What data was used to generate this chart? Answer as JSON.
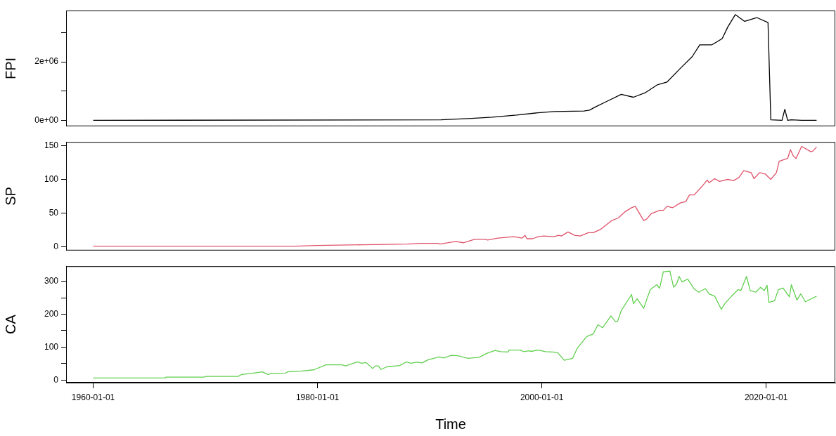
{
  "chart_data": [
    {
      "type": "line",
      "ylabel": "FPI",
      "xlim": [
        "1957-08",
        "2026-03"
      ],
      "ylim": [
        -200000,
        3750000
      ],
      "yticks": [
        {
          "value": 0,
          "label": "0e+00"
        },
        {
          "value": 1000000,
          "label": null
        },
        {
          "value": 2000000,
          "label": "2e+06"
        },
        {
          "value": 3000000,
          "label": null
        }
      ],
      "tick_labels": "y",
      "grid": false,
      "legend": false,
      "series": [
        {
          "color": "#000000",
          "x": [
            "1960-01",
            "1991-01",
            "1993-10",
            "1995-08",
            "1997-10",
            "1999-09",
            "2001-02",
            "2003-10",
            "2004-04",
            "2004-11",
            "2005-10",
            "2007-02",
            "2008-03",
            "2009-04",
            "2010-05",
            "2011-03",
            "2012-05",
            "2013-06",
            "2014-02",
            "2015-03",
            "2016-02",
            "2016-08",
            "2017-04",
            "2018-02",
            "2019-03",
            "2020-03",
            "2020-06",
            "2021-06",
            "2021-09",
            "2021-12",
            "2022-04",
            "2023-03",
            "2024-07"
          ],
          "values": [
            0,
            20000,
            70000,
            110000,
            180000,
            260000,
            300000,
            320000,
            350000,
            470000,
            640000,
            890000,
            790000,
            950000,
            1220000,
            1310000,
            1770000,
            2180000,
            2580000,
            2580000,
            2790000,
            3190000,
            3610000,
            3380000,
            3510000,
            3340000,
            20000,
            0,
            380000,
            0,
            20000,
            0,
            0
          ]
        }
      ]
    },
    {
      "type": "line",
      "ylabel": "SP",
      "xlim": [
        "1957-08",
        "2026-03"
      ],
      "ylim": [
        -5.5,
        155.5
      ],
      "yticks": [
        0,
        50,
        100,
        150
      ],
      "tick_labels": "y",
      "grid": false,
      "legend": false,
      "series": [
        {
          "color": "#df536b",
          "x": [
            "1960-01",
            "1978-01",
            "1980-01",
            "1984-01",
            "1988-01",
            "1989-04",
            "1990-10",
            "1990-12",
            "1992-05",
            "1993-01",
            "1994-01",
            "1994-12",
            "1995-03",
            "1996-02",
            "1997-07",
            "1998-04",
            "1998-07",
            "1998-09",
            "1999-03",
            "1999-09",
            "2000-03",
            "2001-02",
            "2001-07",
            "2001-10",
            "2002-05",
            "2002-12",
            "2003-06",
            "2004-03",
            "2004-08",
            "2005-04",
            "2006-04",
            "2006-11",
            "2007-06",
            "2008-01",
            "2008-05",
            "2009-02",
            "2009-05",
            "2009-10",
            "2010-07",
            "2010-11",
            "2011-03",
            "2011-09",
            "2012-05",
            "2012-11",
            "2013-03",
            "2013-08",
            "2014-04",
            "2014-10",
            "2014-12",
            "2015-06",
            "2015-11",
            "2016-08",
            "2017-02",
            "2017-08",
            "2018-01",
            "2018-09",
            "2018-12",
            "2019-06",
            "2019-12",
            "2020-06",
            "2020-12",
            "2021-03",
            "2021-12",
            "2022-03",
            "2022-06",
            "2022-09",
            "2023-03",
            "2024-01",
            "2024-03",
            "2024-07"
          ],
          "values": [
            1,
            1,
            2,
            3,
            4,
            5,
            5,
            4,
            8,
            6,
            11,
            11,
            10,
            13,
            15,
            13,
            17,
            12,
            12,
            15,
            16,
            15,
            17,
            16,
            22,
            17,
            16,
            21,
            21,
            26,
            39,
            43,
            52,
            58,
            60,
            39,
            41,
            49,
            54,
            54,
            60,
            58,
            65,
            67,
            77,
            77,
            89,
            99,
            95,
            101,
            97,
            100,
            98,
            103,
            113,
            110,
            101,
            110,
            108,
            100,
            110,
            127,
            131,
            144,
            135,
            131,
            149,
            141,
            142,
            148
          ]
        }
      ]
    },
    {
      "type": "line",
      "ylabel": "CA",
      "xlabel": "Time",
      "xlim": [
        "1957-08",
        "2026-03"
      ],
      "ylim": [
        -8,
        346
      ],
      "yticks": [
        0,
        {
          "value": 50,
          "label": null
        },
        100,
        {
          "value": 150,
          "label": null
        },
        200,
        {
          "value": 250,
          "label": null
        },
        300
      ],
      "xticks": [
        "1960-01-01",
        "1980-01-01",
        "2000-01-01",
        "2020-01-01"
      ],
      "grid": false,
      "legend": false,
      "series": [
        {
          "color": "#61d04f",
          "x": [
            "1960-01",
            "1966-06",
            "1966-07",
            "1969-12",
            "1970-01",
            "1972-12",
            "1973-04",
            "1974-02",
            "1975-02",
            "1975-08",
            "1975-12",
            "1977-03",
            "1977-05",
            "1978-07",
            "1979-09",
            "1980-10",
            "1982-03",
            "1982-07",
            "1983-08",
            "1983-12",
            "1984-05",
            "1984-12",
            "1985-03",
            "1985-06",
            "1985-09",
            "1986-03",
            "1987-05",
            "1987-12",
            "1988-05",
            "1988-11",
            "1989-05",
            "1989-11",
            "1990-11",
            "1991-04",
            "1991-12",
            "1992-07",
            "1993-06",
            "1994-06",
            "1995-02",
            "1995-11",
            "1996-05",
            "1997-01",
            "1997-02",
            "1998-02",
            "1998-06",
            "1998-11",
            "1999-02",
            "1999-08",
            "1999-11",
            "2000-05",
            "2001-01",
            "2001-06",
            "2002-01",
            "2002-10",
            "2003-03",
            "2004-01",
            "2004-08",
            "2005-01",
            "2005-06",
            "2006-03",
            "2006-08",
            "2006-10",
            "2007-02",
            "2008-01",
            "2008-03",
            "2008-07",
            "2009-02",
            "2009-09",
            "2010-04",
            "2010-07",
            "2010-11",
            "2011-06",
            "2011-10",
            "2012-01",
            "2012-04",
            "2012-07",
            "2013-01",
            "2013-08",
            "2014-01",
            "2014-08",
            "2014-12",
            "2015-06",
            "2016-01",
            "2016-05",
            "2016-12",
            "2017-07",
            "2017-10",
            "2018-04",
            "2018-08",
            "2019-02",
            "2019-07",
            "2019-11",
            "2020-02",
            "2020-04",
            "2020-10",
            "2021-02",
            "2021-07",
            "2022-02",
            "2022-04",
            "2022-10",
            "2023-02",
            "2023-07",
            "2024-07"
          ],
          "values": [
            6,
            6,
            9,
            9,
            11,
            11,
            17,
            20,
            25,
            17,
            20,
            21,
            25,
            27,
            31,
            46,
            46,
            43,
            55,
            51,
            53,
            35,
            43,
            43,
            32,
            40,
            44,
            55,
            51,
            54,
            52,
            61,
            70,
            67,
            75,
            74,
            66,
            69,
            81,
            90,
            86,
            85,
            91,
            91,
            86,
            89,
            87,
            91,
            90,
            86,
            85,
            83,
            60,
            66,
            97,
            132,
            140,
            168,
            159,
            195,
            177,
            178,
            211,
            260,
            232,
            247,
            218,
            275,
            290,
            279,
            329,
            331,
            282,
            291,
            315,
            298,
            307,
            277,
            267,
            278,
            262,
            255,
            215,
            233,
            255,
            275,
            272,
            315,
            272,
            267,
            282,
            272,
            288,
            236,
            241,
            274,
            280,
            253,
            290,
            243,
            262,
            238,
            255
          ]
        }
      ]
    }
  ]
}
